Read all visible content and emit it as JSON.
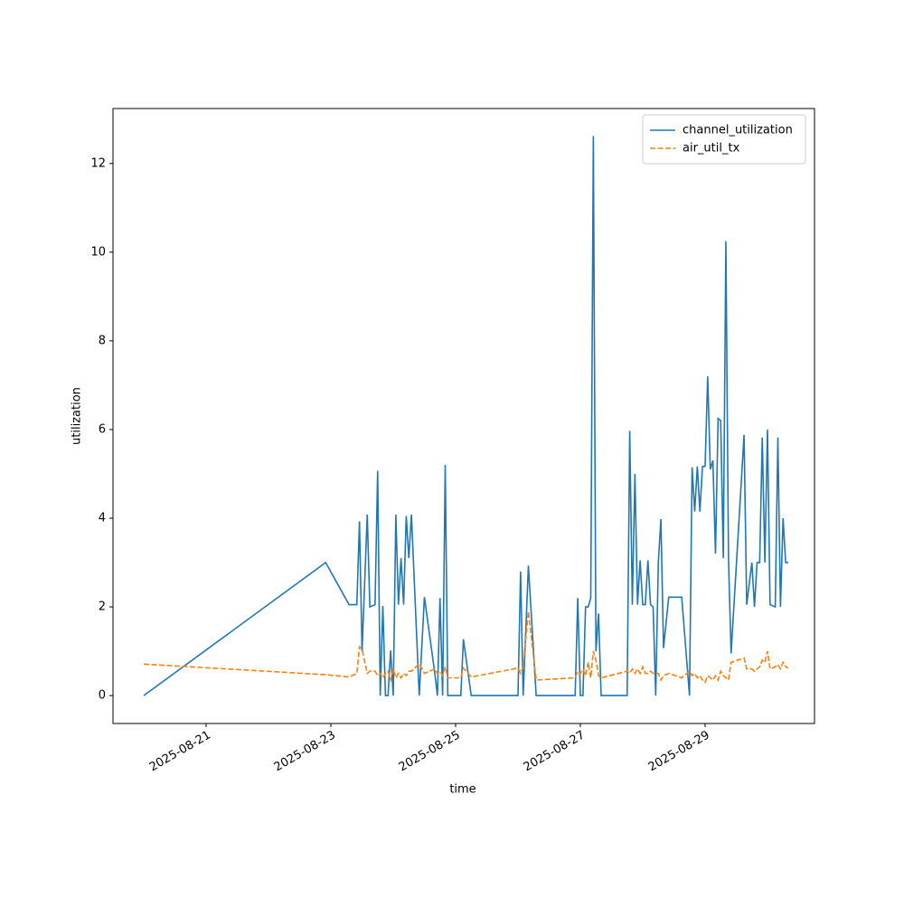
{
  "chart_data": {
    "type": "line",
    "xlabel": "time",
    "ylabel": "utilization",
    "x": [
      "2025-08-20T00:00",
      "2025-08-22T22:00",
      "2025-08-23T07:00",
      "2025-08-23T10:00",
      "2025-08-23T11:00",
      "2025-08-23T12:00",
      "2025-08-23T14:00",
      "2025-08-23T15:00",
      "2025-08-23T17:00",
      "2025-08-23T18:00",
      "2025-08-23T19:00",
      "2025-08-23T20:00",
      "2025-08-23T21:00",
      "2025-08-23T22:00",
      "2025-08-23T23:00",
      "2025-08-24T00:00",
      "2025-08-24T01:00",
      "2025-08-24T02:00",
      "2025-08-24T03:00",
      "2025-08-24T04:00",
      "2025-08-24T05:00",
      "2025-08-24T06:00",
      "2025-08-24T07:00",
      "2025-08-24T10:00",
      "2025-08-24T12:00",
      "2025-08-24T16:00",
      "2025-08-24T17:00",
      "2025-08-24T18:00",
      "2025-08-24T19:00",
      "2025-08-24T20:00",
      "2025-08-24T21:00",
      "2025-08-25T02:00",
      "2025-08-25T03:00",
      "2025-08-25T06:00",
      "2025-08-26T00:00",
      "2025-08-26T01:00",
      "2025-08-26T02:00",
      "2025-08-26T04:00",
      "2025-08-26T07:00",
      "2025-08-26T22:00",
      "2025-08-26T23:00",
      "2025-08-27T00:00",
      "2025-08-27T01:00",
      "2025-08-27T02:00",
      "2025-08-27T03:00",
      "2025-08-27T04:00",
      "2025-08-27T05:00",
      "2025-08-27T06:00",
      "2025-08-27T07:00",
      "2025-08-27T08:00",
      "2025-08-27T18:00",
      "2025-08-27T19:00",
      "2025-08-27T20:00",
      "2025-08-27T21:00",
      "2025-08-27T22:00",
      "2025-08-27T23:00",
      "2025-08-28T00:00",
      "2025-08-28T01:00",
      "2025-08-28T02:00",
      "2025-08-28T03:00",
      "2025-08-28T04:00",
      "2025-08-28T05:00",
      "2025-08-28T06:00",
      "2025-08-28T07:00",
      "2025-08-28T08:00",
      "2025-08-28T10:00",
      "2025-08-28T15:00",
      "2025-08-28T18:00",
      "2025-08-28T19:00",
      "2025-08-28T20:00",
      "2025-08-28T21:00",
      "2025-08-28T22:00",
      "2025-08-28T23:00",
      "2025-08-29T00:00",
      "2025-08-29T01:00",
      "2025-08-29T02:00",
      "2025-08-29T03:00",
      "2025-08-29T04:00",
      "2025-08-29T05:00",
      "2025-08-29T06:00",
      "2025-08-29T07:00",
      "2025-08-29T08:00",
      "2025-08-29T09:00",
      "2025-08-29T10:00",
      "2025-08-29T15:00",
      "2025-08-29T16:00",
      "2025-08-29T18:00",
      "2025-08-29T19:00",
      "2025-08-29T20:00",
      "2025-08-29T21:00",
      "2025-08-29T22:00",
      "2025-08-29T23:00",
      "2025-08-30T00:00",
      "2025-08-30T01:00",
      "2025-08-30T03:00",
      "2025-08-30T04:00",
      "2025-08-30T05:00",
      "2025-08-30T06:00",
      "2025-08-30T07:00",
      "2025-08-30T08:00"
    ],
    "series": [
      {
        "name": "channel_utilization",
        "color": "#1f77b4",
        "dash": "solid",
        "values": [
          0,
          3.0,
          2.05,
          2.05,
          3.93,
          1.0,
          4.08,
          2.0,
          2.05,
          5.07,
          0,
          2.02,
          0,
          0,
          1.02,
          0,
          4.08,
          2.05,
          3.1,
          2.05,
          4.05,
          3.1,
          4.08,
          0,
          2.22,
          0.5,
          0,
          2.2,
          0,
          5.2,
          0,
          0,
          1.27,
          0,
          0,
          2.8,
          0,
          2.93,
          0,
          0,
          2.2,
          0,
          0,
          2.0,
          2.0,
          2.2,
          12.62,
          1.0,
          1.85,
          0,
          0,
          5.97,
          2.05,
          5.0,
          2.05,
          3.05,
          2.05,
          2.05,
          3.05,
          2.05,
          2.0,
          0,
          3.0,
          3.98,
          1.07,
          2.22,
          2.22,
          0,
          5.15,
          4.15,
          5.17,
          4.15,
          5.17,
          5.17,
          7.2,
          5.1,
          5.3,
          3.2,
          6.25,
          6.2,
          3.1,
          10.25,
          3.1,
          0.95,
          5.88,
          2.05,
          3.0,
          2.0,
          3.0,
          3.0,
          5.82,
          3.0,
          6.0,
          2.05,
          2.0,
          5.82,
          2.0,
          4.0,
          3.0,
          3.0
        ]
      },
      {
        "name": "air_util_tx",
        "color": "#ff7f0e",
        "dash": "dashed",
        "values": [
          0.71,
          0.47,
          0.42,
          0.5,
          1.1,
          1.05,
          0.5,
          0.55,
          0.55,
          0.45,
          0.5,
          0.4,
          0.5,
          0.55,
          0.35,
          0.6,
          0.4,
          0.5,
          0.4,
          0.5,
          0.45,
          0.55,
          0.55,
          0.72,
          0.5,
          0.6,
          0.5,
          0.55,
          0.45,
          0.65,
          0.4,
          0.4,
          0.62,
          0.42,
          0.62,
          0.5,
          0.65,
          1.9,
          0.35,
          0.4,
          0.55,
          0.5,
          0.6,
          0.45,
          0.75,
          0.4,
          1.0,
          0.8,
          0.45,
          0.4,
          0.55,
          0.5,
          0.6,
          0.5,
          0.6,
          0.5,
          0.65,
          0.5,
          0.5,
          0.55,
          0.5,
          0.5,
          0.5,
          0.35,
          0.45,
          0.5,
          0.4,
          0.55,
          0.45,
          0.5,
          0.4,
          0.45,
          0.35,
          0.3,
          0.45,
          0.4,
          0.35,
          0.45,
          0.35,
          0.55,
          0.45,
          0.4,
          0.35,
          0.75,
          0.85,
          0.6,
          0.6,
          0.55,
          0.6,
          0.65,
          0.8,
          0.75,
          1.0,
          0.6,
          0.65,
          0.7,
          0.6,
          0.75,
          0.65,
          0.62
        ]
      }
    ],
    "xlim": [
      "2025-08-19T12:10",
      "2025-08-30T18:06"
    ],
    "xticks": [
      "2025-08-21",
      "2025-08-23",
      "2025-08-25",
      "2025-08-27",
      "2025-08-29"
    ],
    "ylim": [
      -0.63,
      13.24
    ],
    "yticks": [
      0,
      2,
      4,
      6,
      8,
      10,
      12
    ],
    "grid": false,
    "legend": "upper right"
  }
}
